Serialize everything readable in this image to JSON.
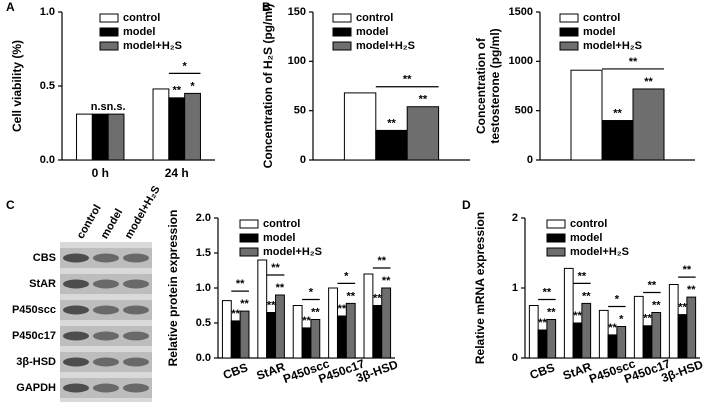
{
  "panel_labels": [
    "A",
    "B",
    "C",
    "D"
  ],
  "blot": {
    "rows": [
      "CBS",
      "StAR",
      "P450scc",
      "P450c17",
      "3β-HSD",
      "GAPDH"
    ],
    "columns": [
      "control",
      "model",
      "model+H₂S"
    ]
  },
  "chart_data": [
    {
      "type": "bar",
      "ylabel": [
        "Cell viability (%)"
      ],
      "categories": [
        "0 h",
        "24 h"
      ],
      "series": [
        {
          "name": "control",
          "color": "#ffffff",
          "values": [
            0.31,
            0.48
          ],
          "marks": [
            null,
            null
          ]
        },
        {
          "name": "model",
          "color": "#000000",
          "values": [
            0.31,
            0.42
          ],
          "marks": [
            "n.s.",
            "**"
          ]
        },
        {
          "name": "model+H₂S",
          "color": "#6e6e6e",
          "values": [
            0.31,
            0.45
          ],
          "marks": [
            "n.s.",
            "*"
          ]
        }
      ],
      "comparison_marks": [
        null,
        "*"
      ],
      "ylim": [
        0,
        1
      ],
      "yticks": [
        {
          "value": 0,
          "label": "0.0"
        },
        0.5,
        {
          "value": 1,
          "label": "1.0"
        }
      ],
      "legend": "upper right"
    },
    {
      "type": "bar",
      "ylabel": [
        "Concentration of H₂S (pg/ml)"
      ],
      "series": [
        {
          "name": "control",
          "color": "#ffffff",
          "values": [
            68
          ],
          "marks": [
            null
          ]
        },
        {
          "name": "model",
          "color": "#000000",
          "values": [
            30
          ],
          "marks": [
            "**"
          ]
        },
        {
          "name": "model+H₂S",
          "color": "#6e6e6e",
          "values": [
            54
          ],
          "marks": [
            "**"
          ]
        }
      ],
      "comparison_marks": [
        "**"
      ],
      "ylim": [
        0,
        150
      ],
      "yticks": [
        0,
        50,
        100,
        150
      ],
      "legend": "upper right"
    },
    {
      "type": "bar",
      "ylabel": [
        "Concentration of",
        "testosterone (pg/ml)"
      ],
      "series": [
        {
          "name": "control",
          "color": "#ffffff",
          "values": [
            910
          ],
          "marks": [
            null
          ]
        },
        {
          "name": "model",
          "color": "#000000",
          "values": [
            400
          ],
          "marks": [
            "**"
          ]
        },
        {
          "name": "model+H₂S",
          "color": "#6e6e6e",
          "values": [
            720
          ],
          "marks": [
            "**"
          ]
        }
      ],
      "comparison_marks": [
        "**"
      ],
      "ylim": [
        0,
        1500
      ],
      "yticks": [
        0,
        500,
        1000,
        1500
      ],
      "legend": "upper right"
    },
    {
      "type": "bar",
      "ylabel": [
        "Relative protein expression"
      ],
      "categories": [
        "CBS",
        "StAR",
        "P450scc",
        "P450c17",
        "3β-HSD"
      ],
      "series": [
        {
          "name": "control",
          "color": "#ffffff",
          "values": [
            0.82,
            1.4,
            0.75,
            1.0,
            1.2
          ],
          "marks": [
            null,
            null,
            null,
            null,
            null
          ]
        },
        {
          "name": "model",
          "color": "#000000",
          "values": [
            0.53,
            0.65,
            0.43,
            0.6,
            0.75
          ],
          "marks": [
            "**",
            "**",
            "**",
            "**",
            "**"
          ]
        },
        {
          "name": "model+H₂S",
          "color": "#6e6e6e",
          "values": [
            0.67,
            0.9,
            0.55,
            0.78,
            1.0
          ],
          "marks": [
            "**",
            "**",
            "**",
            "**",
            "**"
          ]
        }
      ],
      "comparison_marks": [
        "**",
        "**",
        "*",
        "*",
        "**"
      ],
      "ylim": [
        0,
        2
      ],
      "yticks": [
        {
          "value": 0,
          "label": "0.0"
        },
        0.5,
        {
          "value": 1,
          "label": "1.0"
        },
        1.5,
        {
          "value": 2,
          "label": "2.0"
        }
      ],
      "legend": "upper right"
    },
    {
      "type": "bar",
      "ylabel": [
        "Relative mRNA expression"
      ],
      "categories": [
        "CBS",
        "StAR",
        "P450scc",
        "P450c17",
        "3β-HSD"
      ],
      "series": [
        {
          "name": "control",
          "color": "#ffffff",
          "values": [
            0.75,
            1.28,
            0.68,
            0.88,
            1.05
          ],
          "marks": [
            null,
            null,
            null,
            null,
            null
          ]
        },
        {
          "name": "model",
          "color": "#000000",
          "values": [
            0.4,
            0.5,
            0.33,
            0.46,
            0.62
          ],
          "marks": [
            "**",
            "**",
            "**",
            "**",
            "**"
          ]
        },
        {
          "name": "model+H₂S",
          "color": "#6e6e6e",
          "values": [
            0.55,
            0.78,
            0.45,
            0.65,
            0.87
          ],
          "marks": [
            "**",
            "**",
            "*",
            "**",
            "**"
          ]
        }
      ],
      "comparison_marks": [
        "**",
        "**",
        "*",
        "**",
        "**"
      ],
      "ylim": [
        0,
        2
      ],
      "yticks": [
        0,
        1,
        2
      ],
      "legend": "upper right"
    }
  ]
}
